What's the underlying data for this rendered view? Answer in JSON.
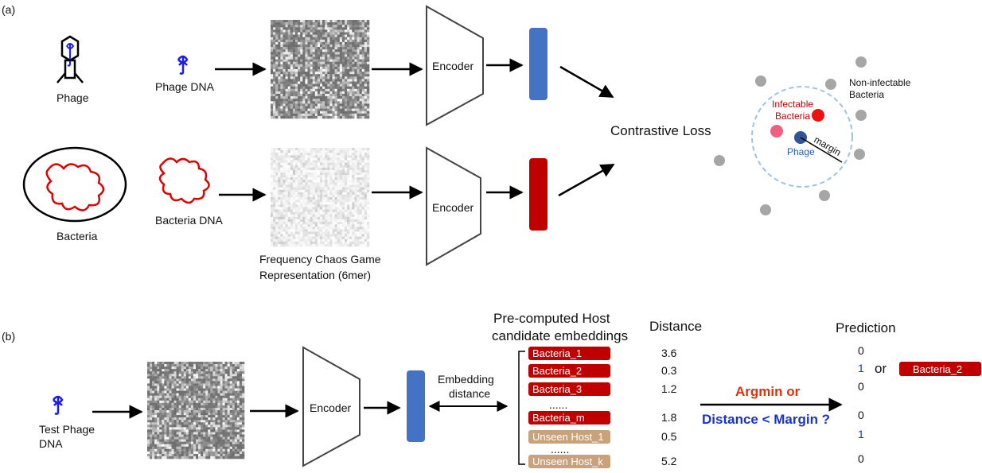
{
  "colors": {
    "blue_embedding": "#4472c4",
    "red_embedding": "#c00000",
    "host_unseen": "#c9a27a",
    "phage_blue": "#1a1aff",
    "bacteria_red": "#e00000",
    "gray_point": "#a6a6a6",
    "margin_circle": "#9dc3e6",
    "argmin_red": "#e03010",
    "distance_blue": "#1a33cc"
  },
  "panel_a": {
    "tag": "(a)",
    "phage_label": "Phage",
    "phage_dna_label": "Phage DNA",
    "bacteria_label": "Bacteria",
    "bacteria_dna_label": "Bacteria DNA",
    "encoder_top": "Encoder",
    "encoder_bottom": "Encoder",
    "fcgr_line1": "Frequency Chaos Game",
    "fcgr_line2": "Representation (6mer)",
    "contrastive_loss": "Contrastive Loss",
    "non_infectable_line1": "Non-infectable",
    "non_infectable_line2": "Bacteria",
    "infectable_line1": "Infectable",
    "infectable_line2": "Bacteria",
    "phage_point_label": "Phage",
    "margin_label": "margin"
  },
  "panel_b": {
    "tag": "(b)",
    "test_phage_line1": "Test Phage",
    "test_phage_line2": "DNA",
    "encoder": "Encoder",
    "embedding_distance_line1": "Embedding",
    "embedding_distance_line2": "distance",
    "precomputed_line1": "Pre-computed Host",
    "precomputed_line2": "candidate embeddings",
    "distance_header": "Distance",
    "prediction_header": "Prediction",
    "argmin": "Argmin or",
    "distance_margin": "Distance < Margin ?",
    "or_label": "or",
    "selected_host": "Bacteria_2",
    "dots_known": "......",
    "dots_unseen": "......",
    "candidates": [
      {
        "name": "Bacteria_1",
        "distance": "3.6",
        "prediction": "0",
        "kind": "known"
      },
      {
        "name": "Bacteria_2",
        "distance": "0.3",
        "prediction": "1",
        "kind": "known"
      },
      {
        "name": "Bacteria_3",
        "distance": "1.2",
        "prediction": "0",
        "kind": "known"
      },
      {
        "name": "Bacteria_m",
        "distance": "1.8",
        "prediction": "0",
        "kind": "known"
      },
      {
        "name": "Unseen Host_1",
        "distance": "0.5",
        "prediction": "1",
        "kind": "unseen"
      },
      {
        "name": "Unseen Host_k",
        "distance": "5.2",
        "prediction": "0",
        "kind": "unseen"
      }
    ]
  }
}
